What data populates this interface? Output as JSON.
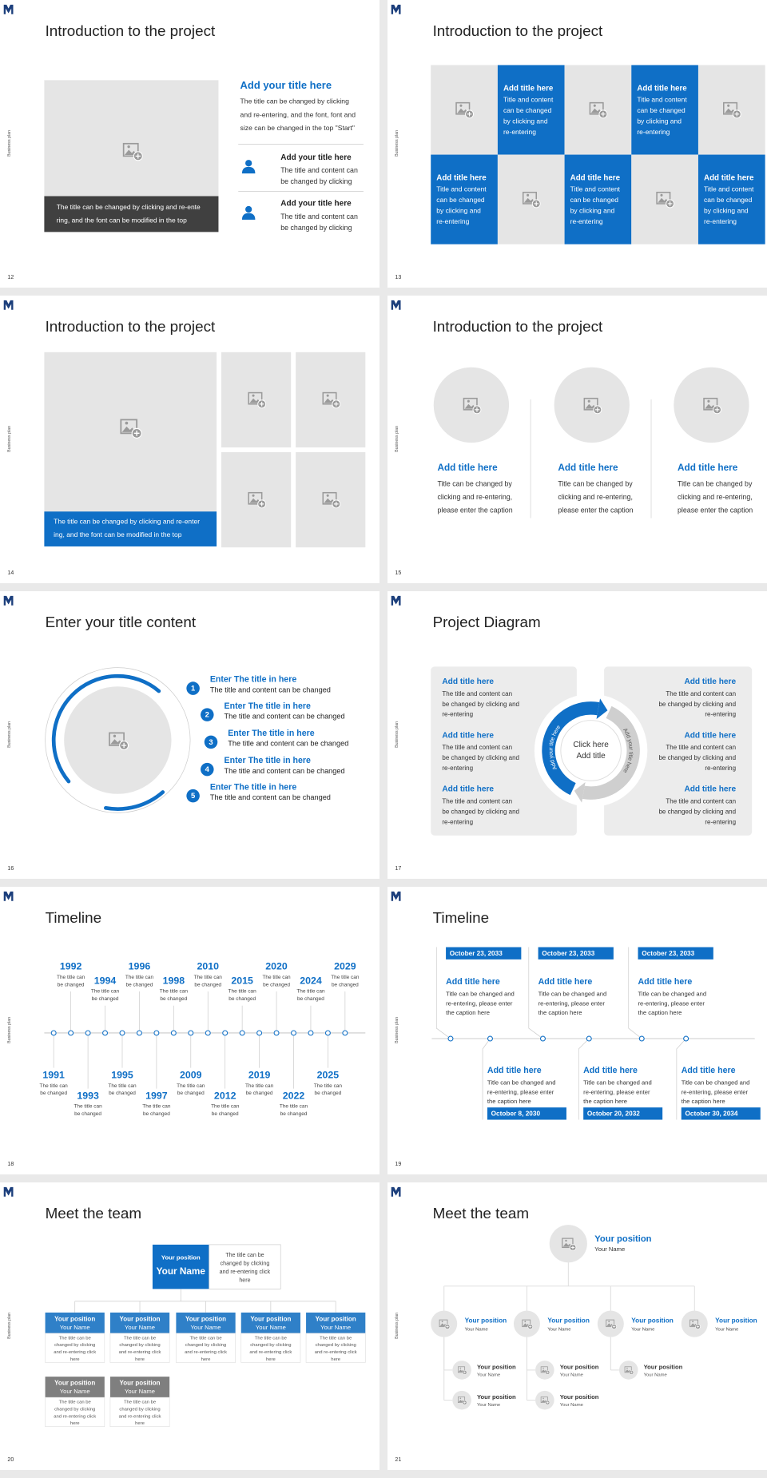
{
  "side_label": "Business plan",
  "slides": [
    {
      "number": "12",
      "title": "Introduction to the project",
      "heading": "Add your title here",
      "text": [
        "The title can be changed by clicking",
        "and re-entering, and the font, font and",
        "size can be changed in the top \"Start\""
      ],
      "caption": [
        "The title can be changed by clicking and re-ente",
        "ring, and the font can be modified in the top"
      ],
      "items": [
        {
          "title": "Add your title here",
          "text": [
            "The title and content can",
            "be changed by clicking"
          ]
        },
        {
          "title": "Add your title here",
          "text": [
            "The title and content can",
            "be changed by clicking"
          ]
        }
      ]
    },
    {
      "number": "13",
      "title": "Introduction to the project",
      "tiles": [
        {
          "title": "Add title here",
          "text": [
            "Title and content",
            "can be changed",
            "by clicking and",
            "re-entering"
          ]
        },
        {
          "title": "Add title here",
          "text": [
            "Title and content",
            "can be changed",
            "by clicking and",
            "re-entering"
          ]
        },
        {
          "title": "Add title here",
          "text": [
            "Title and content",
            "can be changed",
            "by clicking and",
            "re-entering"
          ]
        },
        {
          "title": "Add title here",
          "text": [
            "Title and content",
            "can be changed",
            "by clicking and",
            "re-entering"
          ]
        },
        {
          "title": "Add title here",
          "text": [
            "Title and content",
            "can be changed",
            "by clicking and",
            "re-entering"
          ]
        }
      ]
    },
    {
      "number": "14",
      "title": "Introduction to the project",
      "caption": [
        "The title can be changed by clicking and re-enter",
        "ing, and the font can be modified in the top"
      ]
    },
    {
      "number": "15",
      "title": "Introduction to the project",
      "columns": [
        {
          "title": "Add title here",
          "text": [
            "Title can be changed by",
            "clicking and re-entering,",
            "please enter the caption"
          ]
        },
        {
          "title": "Add title here",
          "text": [
            "Title can be changed by",
            "clicking and re-entering,",
            "please enter the caption"
          ]
        },
        {
          "title": "Add title here",
          "text": [
            "Title can be changed by",
            "clicking and re-entering,",
            "please enter the caption"
          ]
        }
      ]
    },
    {
      "number": "16",
      "title": "Enter your title content",
      "items": [
        {
          "number": "1",
          "title": "Enter The title in here",
          "text": "The title and content can be changed"
        },
        {
          "number": "2",
          "title": "Enter The title in here",
          "text": "The title and content can be changed"
        },
        {
          "number": "3",
          "title": "Enter The title in here",
          "text": "The title and content can be changed"
        },
        {
          "number": "4",
          "title": "Enter The title in here",
          "text": "The title and content can be changed"
        },
        {
          "number": "5",
          "title": "Enter The title in here",
          "text": "The title and content can be changed"
        }
      ]
    },
    {
      "number": "17",
      "title": "Project Diagram",
      "center": [
        "Click here",
        "Add title"
      ],
      "ring_labels": [
        "Add your title here",
        "Add your title here"
      ],
      "left": [
        {
          "title": "Add title here",
          "text": [
            "The title and content can",
            "be changed by clicking and",
            "re-entering"
          ]
        },
        {
          "title": "Add title here",
          "text": [
            "The title and content can",
            "be changed by clicking and",
            "re-entering"
          ]
        },
        {
          "title": "Add title here",
          "text": [
            "The title and content can",
            "be changed by clicking and",
            "re-entering"
          ]
        }
      ],
      "right": [
        {
          "title": "Add title here",
          "text": [
            "The title and content can",
            "be changed by clicking and",
            "re-entering"
          ]
        },
        {
          "title": "Add title here",
          "text": [
            "The title and content can",
            "be changed by clicking and",
            "re-entering"
          ]
        },
        {
          "title": "Add title here",
          "text": [
            "The title and content can",
            "be changed by clicking and",
            "re-entering"
          ]
        }
      ]
    },
    {
      "number": "18",
      "title": "Timeline",
      "events": [
        {
          "year": "1991",
          "text": [
            "The title can",
            "be changed"
          ]
        },
        {
          "year": "1992",
          "text": [
            "The title can",
            "be changed"
          ]
        },
        {
          "year": "1993",
          "text": [
            "The title can",
            "be changed"
          ]
        },
        {
          "year": "1994",
          "text": [
            "The title can",
            "be changed"
          ]
        },
        {
          "year": "1995",
          "text": [
            "The title can",
            "be changed"
          ]
        },
        {
          "year": "1996",
          "text": [
            "The title can",
            "be changed"
          ]
        },
        {
          "year": "1997",
          "text": [
            "The title can",
            "be changed"
          ]
        },
        {
          "year": "1998",
          "text": [
            "The title can",
            "be changed"
          ]
        },
        {
          "year": "2009",
          "text": [
            "The title can",
            "be changed"
          ]
        },
        {
          "year": "2010",
          "text": [
            "The title can",
            "be changed"
          ]
        },
        {
          "year": "2012",
          "text": [
            "The title can",
            "be changed"
          ]
        },
        {
          "year": "2015",
          "text": [
            "The title can",
            "be changed"
          ]
        },
        {
          "year": "2019",
          "text": [
            "The title can",
            "be changed"
          ]
        },
        {
          "year": "2020",
          "text": [
            "The title can",
            "be changed"
          ]
        },
        {
          "year": "2022",
          "text": [
            "The title can",
            "be changed"
          ]
        },
        {
          "year": "2024",
          "text": [
            "The title can",
            "be changed"
          ]
        },
        {
          "year": "2025",
          "text": [
            "The title can",
            "be changed"
          ]
        },
        {
          "year": "2029",
          "text": [
            "The title can",
            "be changed"
          ]
        }
      ]
    },
    {
      "number": "19",
      "title": "Timeline",
      "events": [
        {
          "date": "October 23, 2033",
          "title": "Add title here",
          "text": [
            "Title can be changed and",
            "re-entering, please enter",
            "the caption here"
          ]
        },
        {
          "date": "October 8, 2030",
          "title": "Add title here",
          "text": [
            "Title can be changed and",
            "re-entering, please enter",
            "the caption here"
          ]
        },
        {
          "date": "October 23, 2033",
          "title": "Add title here",
          "text": [
            "Title can be changed and",
            "re-entering, please enter",
            "the caption here"
          ]
        },
        {
          "date": "October 20, 2032",
          "title": "Add title here",
          "text": [
            "Title can be changed and",
            "re-entering, please enter",
            "the caption here"
          ]
        },
        {
          "date": "October 23, 2033",
          "title": "Add title here",
          "text": [
            "Title can be changed and",
            "re-entering, please enter",
            "the caption here"
          ]
        },
        {
          "date": "October 30, 2034",
          "title": "Add title here",
          "text": [
            "Title can be changed and",
            "re-entering, please enter",
            "the caption here"
          ]
        }
      ]
    },
    {
      "number": "20",
      "title": "Meet the team",
      "lead": {
        "position": "Your position",
        "name": "Your Name",
        "text": [
          "The title can be",
          "changed by clicking",
          "and re-entering click",
          "here"
        ]
      },
      "members": [
        {
          "position": "Your position",
          "name": "Your Name",
          "text": [
            "The title can be",
            "changed by clicking",
            "and re-entering click",
            "here"
          ]
        },
        {
          "position": "Your position",
          "name": "Your Name",
          "text": [
            "The title can be",
            "changed by clicking",
            "and re-entering click",
            "here"
          ]
        },
        {
          "position": "Your position",
          "name": "Your Name",
          "text": [
            "The title can be",
            "changed by clicking",
            "and re-entering click",
            "here"
          ]
        },
        {
          "position": "Your position",
          "name": "Your Name",
          "text": [
            "The title can be",
            "changed by clicking",
            "and re-entering click",
            "here"
          ]
        },
        {
          "position": "Your position",
          "name": "Your Name",
          "text": [
            "The title can be",
            "changed by clicking",
            "and re-entering click",
            "here"
          ]
        },
        {
          "position": "Your position",
          "name": "Your Name",
          "text": [
            "The title can be",
            "changed by clicking",
            "and re-entering click",
            "here"
          ]
        },
        {
          "position": "Your position",
          "name": "Your Name",
          "text": [
            "The title can be",
            "changed by clicking",
            "and re-entering click",
            "here"
          ]
        }
      ]
    },
    {
      "number": "21",
      "title": "Meet the team",
      "lead": {
        "position": "Your position",
        "name": "Your Name"
      },
      "members": [
        {
          "position": "Your position",
          "name": "Your Name"
        },
        {
          "position": "Your position",
          "name": "Your Name"
        },
        {
          "position": "Your position",
          "name": "Your Name"
        },
        {
          "position": "Your position",
          "name": "Your Name"
        }
      ],
      "staff": [
        {
          "position": "Your position",
          "name": "Your Name"
        },
        {
          "position": "Your position",
          "name": "Your Name"
        },
        {
          "position": "Your position",
          "name": "Your Name"
        },
        {
          "position": "Your position",
          "name": "Your Name"
        },
        {
          "position": "Your position",
          "name": "Your Name"
        }
      ]
    }
  ]
}
